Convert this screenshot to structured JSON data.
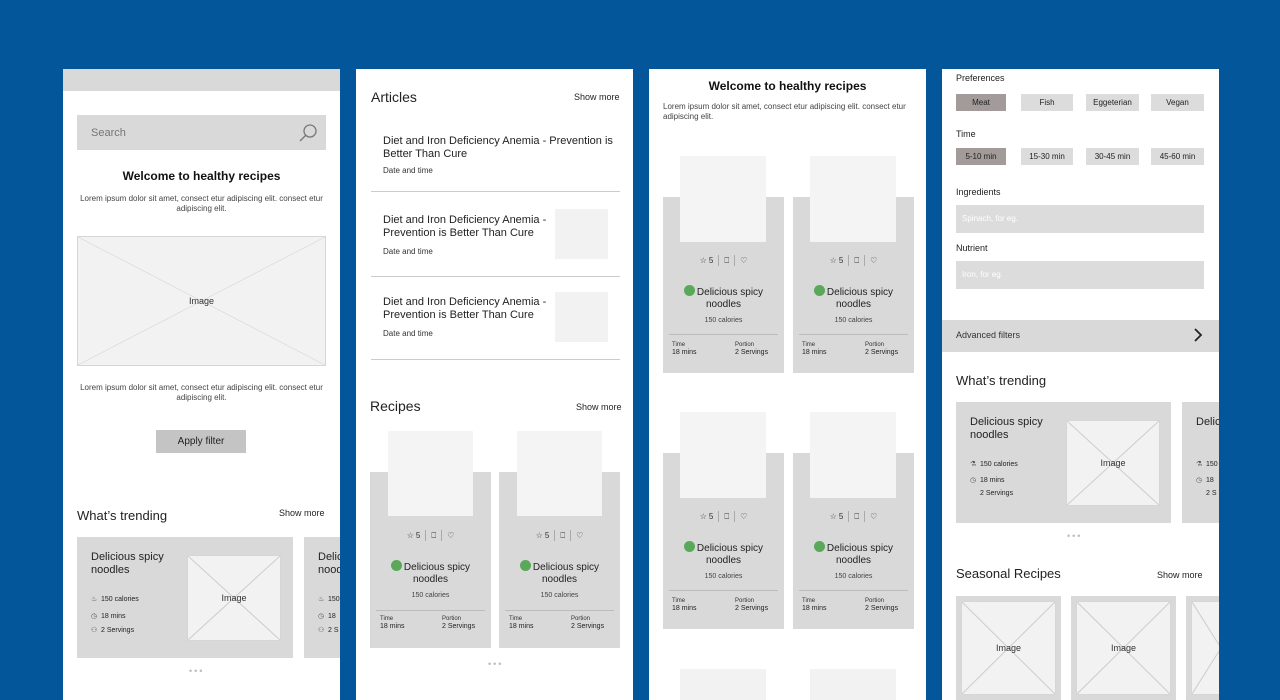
{
  "panel1": {
    "search": {
      "placeholder": "Search"
    },
    "welcome_title": "Welcome to healthy recipes",
    "lorem_top": "Lorem ipsum dolor sit amet, consect etur adipiscing elit. consect etur adipiscing elit.",
    "image_label": "Image",
    "lorem_bottom": "Lorem ipsum dolor sit amet, consect etur adipiscing elit. consect etur adipiscing elit.",
    "apply_filter": "Apply filter",
    "trending_title": "What’s trending",
    "show_more": "Show more",
    "trend_card": {
      "title": "Delicious spicy noodles",
      "calories": "150 calories",
      "time": "18 mins",
      "servings": "2 Servings",
      "image": "Image"
    },
    "trend_card_partial": {
      "title": "Delicious spicy noodles",
      "calories": "150",
      "time": "18",
      "servings": "2 S"
    },
    "dots": "•••"
  },
  "panel2": {
    "articles_title": "Articles",
    "show_more": "Show more",
    "articles": [
      {
        "title": "Diet and Iron Deficiency Anemia - Prevention is Better Than Cure",
        "date": "Date and time"
      },
      {
        "title": "Diet and Iron Deficiency Anemia - Prevention is Better Than Cure",
        "date": "Date and time"
      },
      {
        "title": "Diet and Iron Deficiency Anemia - Prevention is Better Than Cure",
        "date": "Date and time"
      }
    ],
    "recipes_title": "Recipes",
    "recipes_show_more": "Show more",
    "recipe_cards": [
      {
        "rating": "5",
        "title": "Delicious spicy noodles",
        "calories": "150 calories",
        "time_label": "Time",
        "time": "18 mins",
        "portion_label": "Portion",
        "portion": "2 Servings"
      },
      {
        "rating": "5",
        "title": "Delicious spicy noodles",
        "calories": "150 calories",
        "time_label": "Time",
        "time": "18 mins",
        "portion_label": "Portion",
        "portion": "2 Servings"
      }
    ],
    "dots": "•••"
  },
  "panel3": {
    "welcome_title": "Welcome to healthy recipes",
    "lorem": "Lorem ipsum dolor sit amet, consect etur adipiscing elit. consect etur adipiscing elit.",
    "recipe_cards": [
      {
        "rating": "5",
        "title": "Delicious spicy noodles",
        "calories": "150 calories",
        "time_label": "Time",
        "time": "18 mins",
        "portion_label": "Portion",
        "portion": "2 Servings"
      },
      {
        "rating": "5",
        "title": "Delicious spicy noodles",
        "calories": "150 calories",
        "time_label": "Time",
        "time": "18 mins",
        "portion_label": "Portion",
        "portion": "2 Servings"
      },
      {
        "rating": "5",
        "title": "Delicious spicy noodles",
        "calories": "150 calories",
        "time_label": "Time",
        "time": "18 mins",
        "portion_label": "Portion",
        "portion": "2 Servings"
      },
      {
        "rating": "5",
        "title": "Delicious spicy noodles",
        "calories": "150 calories",
        "time_label": "Time",
        "time": "18 mins",
        "portion_label": "Portion",
        "portion": "2 Servings"
      }
    ]
  },
  "panel4": {
    "preferences_label": "Preferences",
    "preferences": [
      {
        "label": "Meat",
        "selected": true
      },
      {
        "label": "Fish",
        "selected": false
      },
      {
        "label": "Eggeterian",
        "selected": false
      },
      {
        "label": "Vegan",
        "selected": false
      }
    ],
    "time_label": "Time",
    "times": [
      {
        "label": "5-10 min",
        "selected": true
      },
      {
        "label": "15-30 min",
        "selected": false
      },
      {
        "label": "30-45 min",
        "selected": false
      },
      {
        "label": "45-60 min",
        "selected": false
      }
    ],
    "ingredients_label": "Ingredients",
    "ingredients_placeholder": "Spinach, for eg.",
    "nutrient_label": "Nutrient",
    "nutrient_placeholder": "Iron, for eg.",
    "advanced_filters": "Advanced filters",
    "trending_title": "What’s trending",
    "trend_card": {
      "title": "Delicious spicy noodles",
      "calories": "150 calories",
      "time": "18 mins",
      "servings": "2 Servings",
      "image": "Image"
    },
    "trend_card_partial": {
      "title": "Delicious noodles",
      "calories": "150",
      "time": "18",
      "servings": "2 S"
    },
    "dots": "•••",
    "seasonal_title": "Seasonal Recipes",
    "seasonal_show_more": "Show more",
    "seasonal_image": "Image"
  }
}
